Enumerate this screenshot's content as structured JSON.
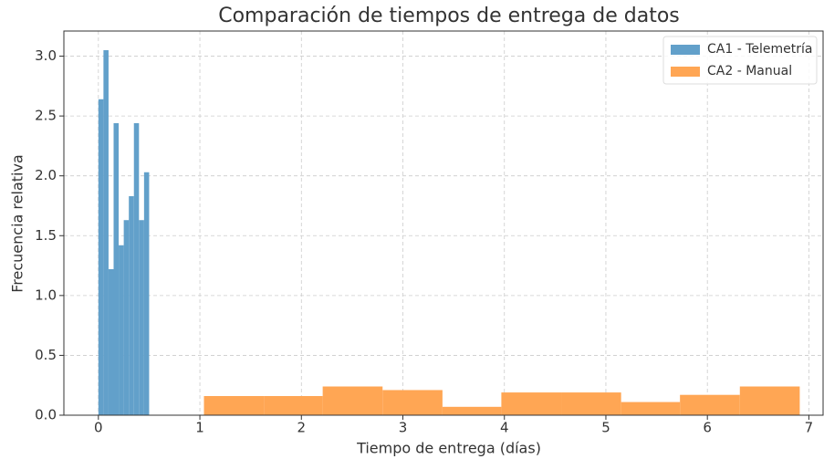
{
  "chart_data": {
    "type": "histogram",
    "title": "Comparación de tiempos de entrega de datos",
    "x_label": "Tiempo de entrega (días)",
    "y_label": "Frecuencia relativa",
    "series": [
      {
        "name": "CA1 - Telemetría",
        "color": "#62a0ca",
        "bins": [
          0.0,
          0.05,
          0.1,
          0.15,
          0.2,
          0.25,
          0.3,
          0.35,
          0.4,
          0.45,
          0.5
        ],
        "values": [
          2.64,
          3.05,
          1.22,
          2.44,
          1.42,
          1.63,
          1.83,
          2.44,
          1.63,
          2.03
        ]
      },
      {
        "name": "CA2 - Manual",
        "color": "#ffa654",
        "bins": [
          1.04,
          1.63,
          2.21,
          2.8,
          3.39,
          3.97,
          4.56,
          5.15,
          5.73,
          6.32,
          6.91
        ],
        "values": [
          0.16,
          0.16,
          0.24,
          0.21,
          0.07,
          0.19,
          0.19,
          0.11,
          0.17,
          0.24
        ]
      }
    ],
    "xlim": [
      -0.34,
      7.14
    ],
    "ylim": [
      0,
      3.21
    ],
    "xticks": [
      0,
      1,
      2,
      3,
      4,
      5,
      6,
      7
    ],
    "yticks": [
      {
        "value": 0,
        "label": "0.0"
      },
      {
        "value": 0.5,
        "label": "0.5"
      },
      {
        "value": 1,
        "label": "1.0"
      },
      {
        "value": 1.5,
        "label": "1.5"
      },
      {
        "value": 2,
        "label": "2.0"
      },
      {
        "value": 2.5,
        "label": "2.5"
      },
      {
        "value": 3,
        "label": "3.0"
      }
    ],
    "grid": true,
    "legend": "upper right"
  }
}
